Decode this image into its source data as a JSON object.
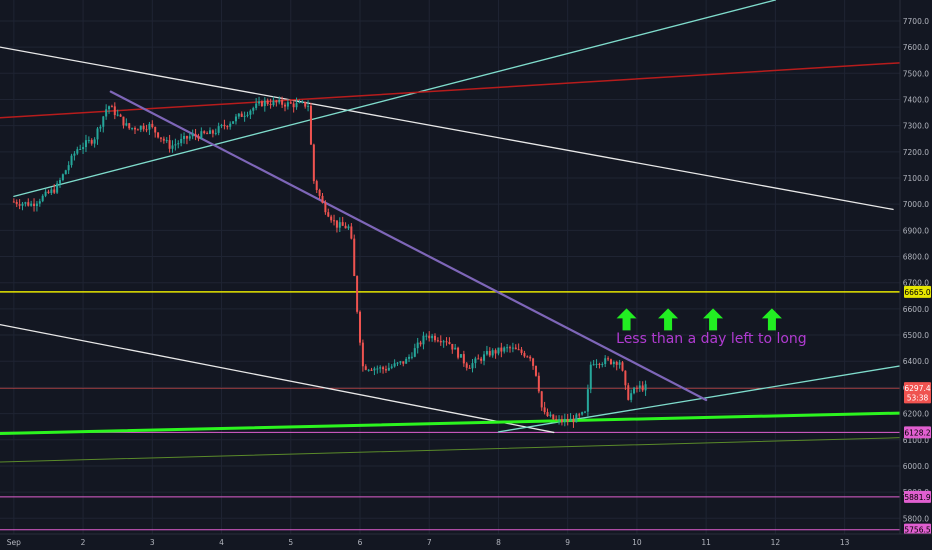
{
  "colors": {
    "background": "#131722",
    "up_candle": "#26a69a",
    "down_candle": "#ef5350",
    "trend_white": "#e8e8e8",
    "trend_cyan": "#7fdccc",
    "trend_red": "#b71c1c",
    "trend_purple": "#7e66b8",
    "support_green": "#2cf51f",
    "support_olive": "#5a8a2a",
    "level_yellow": "#e6e600",
    "level_magenta": "#e05fd0",
    "arrow_green": "#22ee22",
    "annotation_purple": "#b03bd1",
    "axis_text": "#b2b5be"
  },
  "chart_data": {
    "type": "candlestick",
    "title": "",
    "xlabel": "",
    "ylabel": "",
    "x_ticks": [
      "Sep",
      "2",
      "3",
      "4",
      "5",
      "6",
      "7",
      "8",
      "9",
      "10",
      "11",
      "12",
      "13"
    ],
    "x_tick_days": [
      1,
      2,
      3,
      4,
      5,
      6,
      7,
      8,
      9,
      10,
      11,
      12,
      13
    ],
    "xlim": [
      0.8,
      13.8
    ],
    "ylim": [
      5740,
      7780
    ],
    "y_ticks": [
      5800,
      5900,
      6000,
      6100,
      6200,
      6300,
      6400,
      6500,
      6600,
      6700,
      6800,
      6900,
      7000,
      7100,
      7200,
      7300,
      7400,
      7500,
      7600,
      7700
    ],
    "y_tick_labels": [
      "5800.0",
      "5900.0",
      "6000.0",
      "6100.0",
      "6200.0",
      "6300.0",
      "6400.0",
      "6500.0",
      "6600.0",
      "6700.0",
      "6800.0",
      "6900.0",
      "7000.0",
      "7100.0",
      "7200.0",
      "7300.0",
      "7400.0",
      "7500.0",
      "7600.0",
      "7700.0"
    ],
    "price_labels": [
      {
        "value": 6665.0,
        "text": "6665.0",
        "color": "#e6e600",
        "text_color": "#000000"
      },
      {
        "value": 6297.4,
        "text": "6297.4",
        "color": "#ef5350",
        "text_color": "#ffffff"
      },
      {
        "value": 6262.0,
        "text": "53:38",
        "color": "#ef5350",
        "text_color": "#ffffff"
      },
      {
        "value": 6128.2,
        "text": "6128.2",
        "color": "#e05fd0",
        "text_color": "#000000"
      },
      {
        "value": 5881.9,
        "text": "5881.9",
        "color": "#e05fd0",
        "text_color": "#000000"
      },
      {
        "value": 5756.5,
        "text": "5756.5",
        "color": "#e05fd0",
        "text_color": "#000000"
      }
    ],
    "horizontal_levels": [
      {
        "name": "yellow-resistance",
        "value": 6665,
        "color": "#e6e600",
        "width": 1.5
      },
      {
        "name": "current-price",
        "value": 6297,
        "color": "#ef5350",
        "width": 0.7
      },
      {
        "name": "magenta-level-1",
        "value": 6128,
        "color": "#e05fd0",
        "width": 1
      },
      {
        "name": "magenta-level-2",
        "value": 5882,
        "color": "#e05fd0",
        "width": 1
      },
      {
        "name": "magenta-level-3",
        "value": 5756,
        "color": "#e05fd0",
        "width": 1
      }
    ],
    "trendlines": [
      {
        "name": "white-upper-downtrend",
        "x1": 0.8,
        "y1": 7600,
        "x2": 13.7,
        "y2": 6980,
        "color": "#e8e8e8",
        "width": 1.3
      },
      {
        "name": "white-lower-downtrend",
        "x1": 0.8,
        "y1": 6540,
        "x2": 8.8,
        "y2": 6128,
        "color": "#e8e8e8",
        "width": 1.3
      },
      {
        "name": "cyan-upper-uptrend",
        "x1": 1.0,
        "y1": 7030,
        "x2": 12.0,
        "y2": 7780,
        "color": "#7fdccc",
        "width": 1.3
      },
      {
        "name": "cyan-lower-uptrend",
        "x1": 8.0,
        "y1": 6130,
        "x2": 13.8,
        "y2": 6382,
        "color": "#7fdccc",
        "width": 1.3
      },
      {
        "name": "red-resistance",
        "x1": 0.8,
        "y1": 7330,
        "x2": 13.8,
        "y2": 7540,
        "color": "#b71c1c",
        "width": 1.5
      },
      {
        "name": "purple-downtrend",
        "x1": 2.4,
        "y1": 7430,
        "x2": 11.0,
        "y2": 6252,
        "color": "#7e66b8",
        "width": 2.2
      },
      {
        "name": "green-support",
        "x1": 0.8,
        "y1": 6124,
        "x2": 13.8,
        "y2": 6202,
        "color": "#2cf51f",
        "width": 3
      },
      {
        "name": "olive-support",
        "x1": 0.8,
        "y1": 6015,
        "x2": 13.8,
        "y2": 6108,
        "color": "#5a8a2a",
        "width": 1
      }
    ],
    "annotations": [
      {
        "text": "Less than a day left to long",
        "x": 9.7,
        "y": 6470,
        "color": "#b03bd1"
      }
    ],
    "arrows": [
      {
        "x": 9.85,
        "y": 6560
      },
      {
        "x": 10.45,
        "y": 6560
      },
      {
        "x": 11.1,
        "y": 6560
      },
      {
        "x": 11.95,
        "y": 6560
      }
    ],
    "candle_waypoints": [
      [
        1.0,
        7010
      ],
      [
        1.3,
        7000
      ],
      [
        1.65,
        7060
      ],
      [
        1.95,
        7210
      ],
      [
        2.2,
        7250
      ],
      [
        2.4,
        7380
      ],
      [
        2.7,
        7290
      ],
      [
        3.0,
        7300
      ],
      [
        3.3,
        7220
      ],
      [
        3.6,
        7260
      ],
      [
        3.9,
        7270
      ],
      [
        4.2,
        7320
      ],
      [
        4.45,
        7360
      ],
      [
        4.65,
        7390
      ],
      [
        4.9,
        7385
      ],
      [
        5.1,
        7380
      ],
      [
        5.3,
        7380
      ],
      [
        5.36,
        7100
      ],
      [
        5.5,
        7000
      ],
      [
        5.7,
        6920
      ],
      [
        5.9,
        6910
      ],
      [
        5.98,
        6650
      ],
      [
        6.08,
        6380
      ],
      [
        6.4,
        6370
      ],
      [
        6.7,
        6400
      ],
      [
        7.0,
        6500
      ],
      [
        7.3,
        6480
      ],
      [
        7.6,
        6380
      ],
      [
        7.9,
        6430
      ],
      [
        8.2,
        6450
      ],
      [
        8.5,
        6420
      ],
      [
        8.6,
        6340
      ],
      [
        8.68,
        6200
      ],
      [
        8.9,
        6170
      ],
      [
        9.1,
        6175
      ],
      [
        9.3,
        6200
      ],
      [
        9.38,
        6400
      ],
      [
        9.6,
        6400
      ],
      [
        9.8,
        6400
      ],
      [
        9.9,
        6260
      ],
      [
        10.05,
        6300
      ],
      [
        10.15,
        6300
      ]
    ],
    "candles_per_day": 24
  }
}
